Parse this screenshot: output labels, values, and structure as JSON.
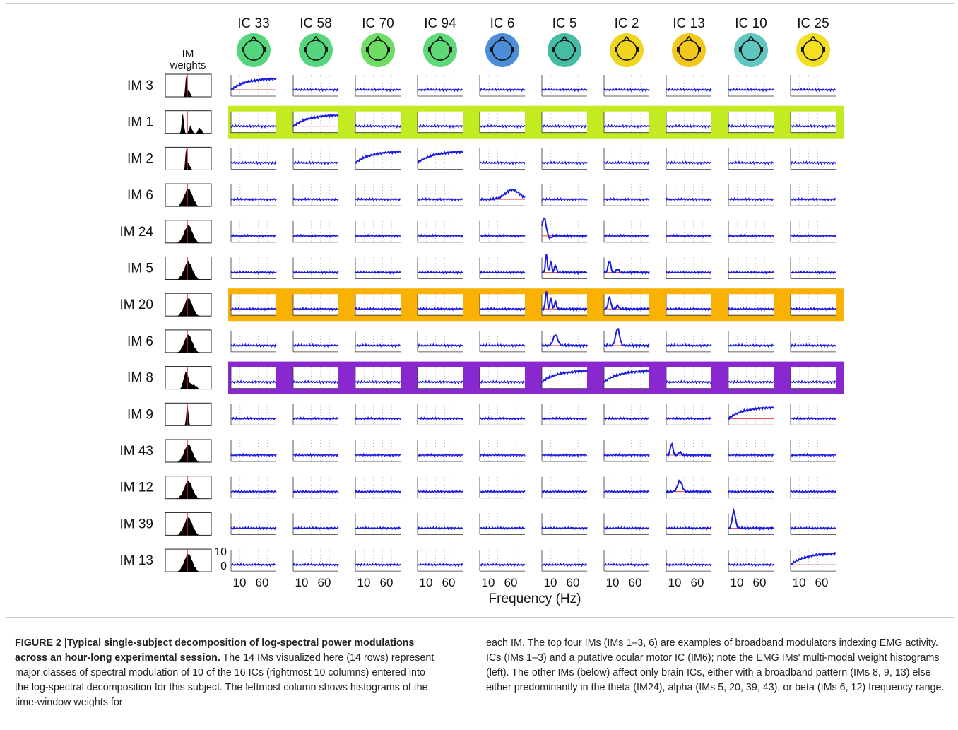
{
  "ic_labels": [
    "IC 33",
    "IC 58",
    "IC 70",
    "IC 94",
    "IC 6",
    "IC 5",
    "IC 2",
    "IC 13",
    "IC 10",
    "IC 25"
  ],
  "weights_header": [
    "IM",
    "weights"
  ],
  "im_labels": [
    "IM 3",
    "IM 1",
    "IM 2",
    "IM 6",
    "IM 24",
    "IM 5",
    "IM 20",
    "IM 6",
    "IM 8",
    "IM 9",
    "IM 43",
    "IM 12",
    "IM 39",
    "IM 13"
  ],
  "highlight_rows": [
    {
      "row": 1,
      "color": "#c2eb21"
    },
    {
      "row": 6,
      "color": "#f9b204"
    },
    {
      "row": 8,
      "color": "#8a28d0"
    }
  ],
  "x_ticks": [
    "10",
    "60"
  ],
  "y_ticks": [
    "10",
    "0"
  ],
  "x_axis_label": "Frequency (Hz)",
  "caption": {
    "title": "FIGURE 2 |Typical single-subject decomposition of log-spectral power modulations across an hour-long experimental session.",
    "left_body": " The 14 IMs visualized here (14 rows) represent major classes of spectral modulation of 10 of the 16 ICs (rightmost 10 columns) entered into the log-spectral decomposition for this subject. The leftmost column shows histograms of the time-window weights for",
    "right_body": "each IM. The top four IMs (IMs 1–3, 6) are examples of broadband modulators indexing EMG activity. ICs (IMs 1–3) and a putative ocular motor IC (IM6); note the EMG IMs' multi-modal weight histograms (left). The other IMs (below) affect only brain ICs, either with a broadband pattern (IMs 8, 9, 13) else either predominantly in the theta (IM24), alpha (IMs 5, 20, 39, 43), or beta (IMs 6, 12) frequency range."
  },
  "colors": {
    "curve": "#1a1ae0",
    "baseline": "#e02020",
    "grid": "#9a9a9a",
    "histogram": "#000000",
    "median_line": "#e02020"
  },
  "scalp_colors": [
    "#56d67c",
    "#56d67c",
    "#6fdc64",
    "#5fd877",
    "#4d8ed8",
    "#46bca6",
    "#f0d51e",
    "#f3c81c",
    "#5fc6c0",
    "#f5df22"
  ],
  "histogram_types": [
    "spiky",
    "spiky-multi",
    "spiky",
    "broad",
    "broad",
    "broad",
    "broad",
    "broad",
    "skew",
    "narrow",
    "broad",
    "broad",
    "broad",
    "broad"
  ],
  "special_curves": [
    {
      "row": 0,
      "col": 0,
      "shape": "rise"
    },
    {
      "row": 1,
      "col": 1,
      "shape": "rise"
    },
    {
      "row": 2,
      "col": 2,
      "shape": "rise"
    },
    {
      "row": 2,
      "col": 3,
      "shape": "rise"
    },
    {
      "row": 3,
      "col": 4,
      "shape": "hump"
    },
    {
      "row": 4,
      "col": 5,
      "shape": "theta"
    },
    {
      "row": 5,
      "col": 5,
      "shape": "alpha-multi"
    },
    {
      "row": 5,
      "col": 6,
      "shape": "alpha"
    },
    {
      "row": 6,
      "col": 5,
      "shape": "alpha-multi"
    },
    {
      "row": 6,
      "col": 6,
      "shape": "alpha"
    },
    {
      "row": 7,
      "col": 5,
      "shape": "beta"
    },
    {
      "row": 7,
      "col": 6,
      "shape": "beta-tall"
    },
    {
      "row": 8,
      "col": 5,
      "shape": "rise"
    },
    {
      "row": 8,
      "col": 6,
      "shape": "rise"
    },
    {
      "row": 9,
      "col": 8,
      "shape": "rise"
    },
    {
      "row": 10,
      "col": 7,
      "shape": "alpha"
    },
    {
      "row": 11,
      "col": 7,
      "shape": "beta"
    },
    {
      "row": 12,
      "col": 8,
      "shape": "alpha-tall"
    },
    {
      "row": 13,
      "col": 9,
      "shape": "rise"
    }
  ]
}
